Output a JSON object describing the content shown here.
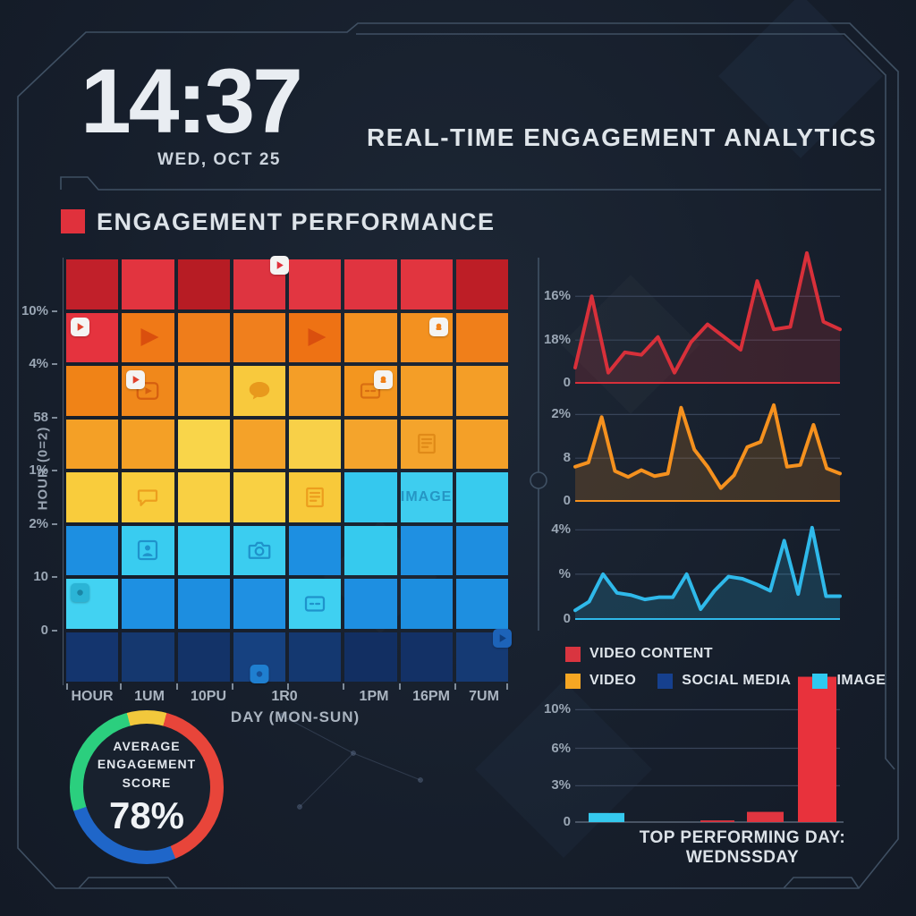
{
  "clock": {
    "time": "14:37",
    "date": "WED, OCT 25"
  },
  "header": {
    "title": "REAL-TIME ENGAGEMENT ANALYTICS"
  },
  "section": {
    "title": "ENGAGEMENT PERFORMANCE",
    "accent_color": "#e0313c"
  },
  "heatmap": {
    "y_axis_label": "HOUR (0=2)",
    "y_ticks": [
      "10%",
      "4%",
      "58",
      "1%",
      "2%",
      "10",
      "0"
    ],
    "x_ticks": [
      "HOUR",
      "1UM",
      "10PU",
      "1R0",
      "1PM",
      "16PM",
      "7UM"
    ],
    "x_axis_label": "DAY (MON-SUN)",
    "rows": [
      [
        {
          "c": "#c1202a"
        },
        {
          "c": "#e2343f"
        },
        {
          "c": "#b71c24"
        },
        {
          "c": "#de3440",
          "b": "play",
          "bpos": "tc",
          "bfill": "#f4f4f3",
          "bglyph": "#e0313c"
        },
        {
          "c": "#e23641"
        },
        {
          "c": "#e03440"
        },
        {
          "c": "#e1353f"
        },
        {
          "c": "#bd1e26"
        }
      ],
      [
        {
          "c": "#e5333e",
          "b": "play",
          "bpos": "tl",
          "bfill": "#f4f4f3",
          "bglyph": "#e0412c"
        },
        {
          "c": "#f07917",
          "i": "play-tri",
          "ic": "#da4f0e"
        },
        {
          "c": "#ef7d1b"
        },
        {
          "c": "#f07f1d"
        },
        {
          "c": "#ee7214",
          "i": "play-tri",
          "ic": "#da4f0e"
        },
        {
          "c": "#f39020"
        },
        {
          "c": "#f39120",
          "b": "notification",
          "bpos": "tr",
          "bfill": "#f4f4f3",
          "bglyph": "#f08018"
        },
        {
          "c": "#f07f1a"
        }
      ],
      [
        {
          "c": "#f08317"
        },
        {
          "c": "#f0881b",
          "i": "play-outline",
          "ic": "#d55f10",
          "b": "play",
          "bpos": "tl",
          "bfill": "#f4f4f3",
          "bglyph": "#e0412c"
        },
        {
          "c": "#f49e27"
        },
        {
          "c": "#f8c93d",
          "i": "chat-solid",
          "ic": "#e8991d"
        },
        {
          "c": "#f49e27"
        },
        {
          "c": "#f3961f",
          "i": "card-outline",
          "ic": "#d96f12",
          "b": "notification",
          "bpos": "tr",
          "bfill": "#f4f4f3",
          "bglyph": "#f08018"
        },
        {
          "c": "#f49e27"
        },
        {
          "c": "#f49e27"
        }
      ],
      [
        {
          "c": "#f4a026"
        },
        {
          "c": "#f4a026"
        },
        {
          "c": "#f9d54a"
        },
        {
          "c": "#f4a229"
        },
        {
          "c": "#f8d048"
        },
        {
          "c": "#f4a42c"
        },
        {
          "c": "#f4a42c",
          "i": "doc",
          "ic": "#e08a18"
        },
        {
          "c": "#f4a028"
        }
      ],
      [
        {
          "c": "#f9cc3c"
        },
        {
          "c": "#f9cc3c",
          "i": "chat-outline",
          "ic": "#ec9e1e"
        },
        {
          "c": "#f9d043"
        },
        {
          "c": "#f9d043"
        },
        {
          "c": "#f8c93a",
          "i": "doc",
          "ic": "#ec9e1e"
        },
        {
          "c": "#35c8ee"
        },
        {
          "c": "#3ecdef",
          "t": "IMAGE",
          "tc": "#2596c4"
        },
        {
          "c": "#38cbee"
        }
      ],
      [
        {
          "c": "#1d8fe1"
        },
        {
          "c": "#39ccf0",
          "i": "person-photo",
          "ic": "#1f93cb"
        },
        {
          "c": "#38ccf0"
        },
        {
          "c": "#3bcdf0",
          "i": "camera",
          "ic": "#1f93cb"
        },
        {
          "c": "#1d8fe1"
        },
        {
          "c": "#36caee"
        },
        {
          "c": "#1f90e2"
        },
        {
          "c": "#1e8ee0"
        }
      ],
      [
        {
          "c": "#42d2f2",
          "b": "dot",
          "bpos": "tl",
          "bfill": "#2bb4d6",
          "bglyph": "#1a86a6"
        },
        {
          "c": "#1e90e2"
        },
        {
          "c": "#1d8ee0"
        },
        {
          "c": "#1f90e2"
        },
        {
          "c": "#3fd0f1",
          "i": "card-outline",
          "ic": "#1f93cb"
        },
        {
          "c": "#1e8fe1"
        },
        {
          "c": "#1d8edf"
        },
        {
          "c": "#1e8fe0"
        }
      ],
      [
        {
          "c": "#14356e"
        },
        {
          "c": "#15386f"
        },
        {
          "c": "#133368"
        },
        {
          "c": "#164180",
          "b": "dot",
          "bpos": "bc",
          "bfill": "#1f7fd0",
          "bglyph": "#16529a"
        },
        {
          "c": "#143870"
        },
        {
          "c": "#122f62"
        },
        {
          "c": "#133166"
        },
        {
          "c": "#153a74",
          "b": "play",
          "bpos": "tc",
          "bfill": "#1d63b8",
          "bglyph": "#0f3e7e"
        }
      ]
    ]
  },
  "gauge": {
    "label_line1": "AVERAGE",
    "label_line2": "ENGAGEMENT SCORE",
    "value": "78%",
    "segments": [
      {
        "color": "#f2c83c",
        "from": 0,
        "to": 15
      },
      {
        "color": "#e8453a",
        "from": 15,
        "to": 158
      },
      {
        "color": "#1f66c9",
        "from": 158,
        "to": 252
      },
      {
        "color": "#2bcf7e",
        "from": 252,
        "to": 345
      },
      {
        "color": "#f2c83c",
        "from": 345,
        "to": 360
      }
    ]
  },
  "chart_data": [
    {
      "type": "line",
      "name": "VIDEO CONTENT trend",
      "color": "#d8303a",
      "values": [
        3,
        17,
        2,
        6,
        5.5,
        9,
        2,
        8,
        11.5,
        9,
        6.5,
        20,
        10.5,
        11,
        25.5,
        12,
        10.5
      ],
      "ylim": [
        0,
        26
      ],
      "grid": true,
      "legend_position": "below",
      "yticks": [
        {
          "label": "16%",
          "value": 17
        },
        {
          "label": "18%",
          "value": 8.4
        },
        {
          "label": "0",
          "value": 0
        }
      ]
    },
    {
      "type": "line",
      "name": "VIDEO trend",
      "color": "#f5911e",
      "values": [
        4,
        4.5,
        9.8,
        3.5,
        2.8,
        3.6,
        2.9,
        3.2,
        10.9,
        6,
        4,
        1.5,
        3,
        6.3,
        6.9,
        11.2,
        4,
        4.2,
        8.9,
        3.8,
        3.2
      ],
      "ylim": [
        0,
        11.5
      ],
      "grid": true,
      "yticks": [
        {
          "label": "2%",
          "value": 10.1
        },
        {
          "label": "8",
          "value": 5.0
        },
        {
          "label": "0",
          "value": 0
        }
      ]
    },
    {
      "type": "line",
      "name": "IMAGE trend",
      "color": "#2fb9ea",
      "values": [
        0.4,
        0.8,
        2.06,
        1.2,
        1.1,
        0.9,
        1.0,
        1.0,
        2.06,
        0.45,
        1.3,
        1.95,
        1.85,
        1.6,
        1.3,
        3.6,
        1.15,
        4.2,
        1.05,
        1.05
      ],
      "ylim": [
        0,
        4.4
      ],
      "grid": true,
      "yticks": [
        {
          "label": "4%",
          "value": 4.1
        },
        {
          "label": "%",
          "value": 2.06
        },
        {
          "label": "0",
          "value": 0
        }
      ]
    },
    {
      "type": "bar",
      "name": "top performing day",
      "values": [
        0.8,
        0.15,
        0.9,
        12.8
      ],
      "colors": [
        "#35c9ee",
        "#d93540",
        "#e03540",
        "#e8323c"
      ],
      "ylim": [
        0,
        13
      ],
      "grid": true,
      "yticks": [
        {
          "label": "10%",
          "value": 9.9
        },
        {
          "label": "6%",
          "value": 6.5
        },
        {
          "label": "3%",
          "value": 3.2
        },
        {
          "label": "0",
          "value": 0
        }
      ]
    }
  ],
  "legend": {
    "row1": [
      {
        "label": "VIDEO CONTENT",
        "color": "#d93540"
      }
    ],
    "row2": [
      {
        "label": "VIDEO",
        "color": "#f5a623"
      },
      {
        "label": "SOCIAL MEDIA",
        "color": "#16408e"
      },
      {
        "label": "IMAGE",
        "color": "#2fc9f0"
      }
    ]
  },
  "footer": {
    "caption": "TOP PERFORMING DAY: WEDNSSDAY"
  }
}
